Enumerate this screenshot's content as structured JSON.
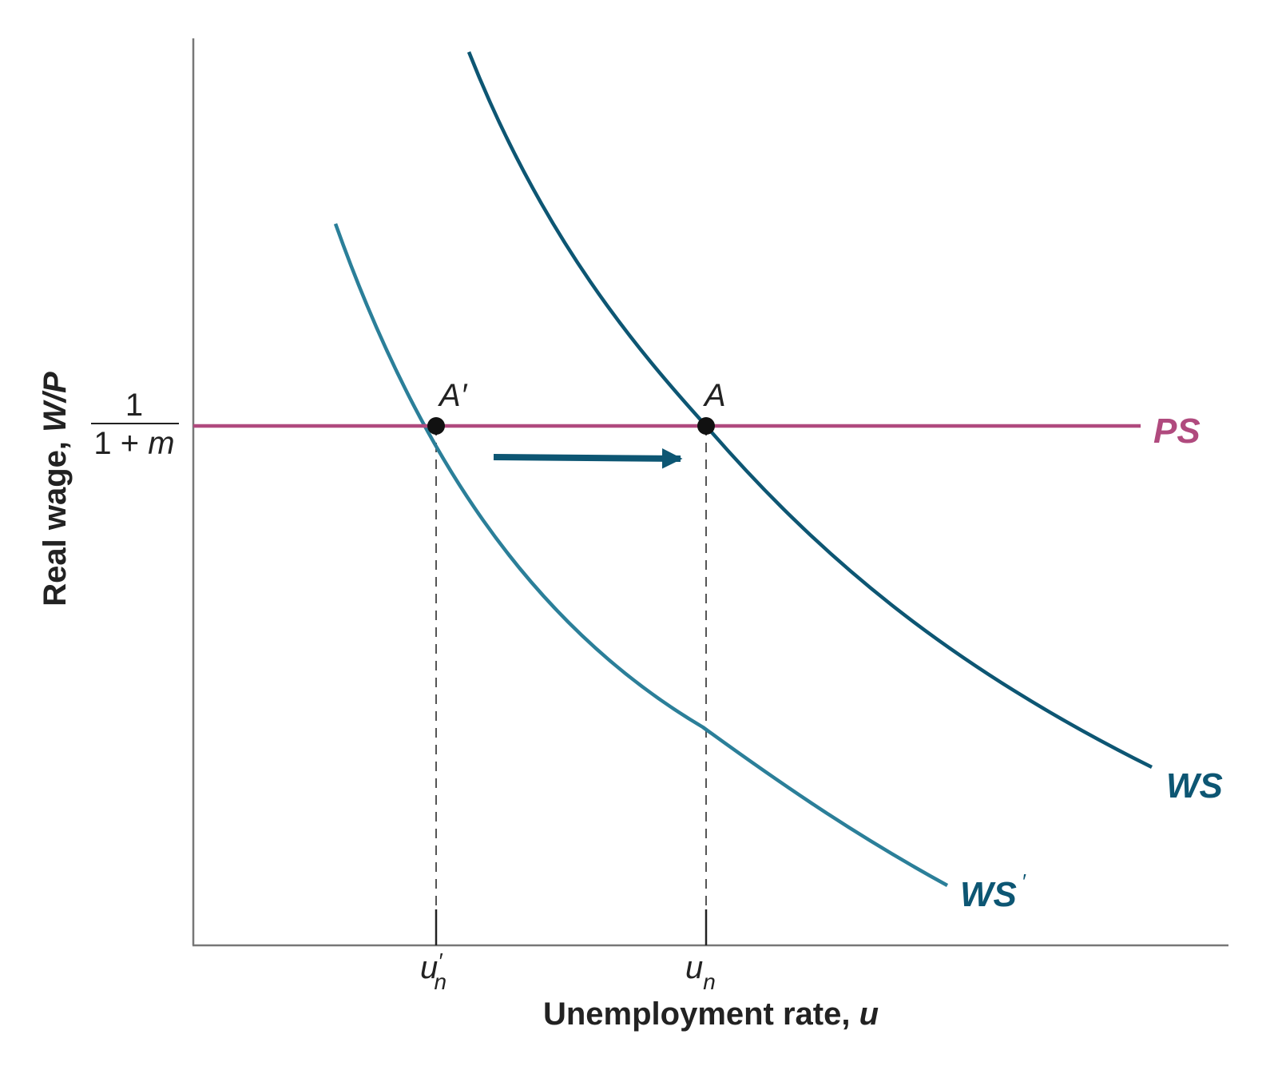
{
  "axes": {
    "y_label_prefix": "Real wage,",
    "y_label_var": "W/P",
    "x_label_prefix": "Unemployment rate,",
    "x_label_var": "u",
    "y_tick_numerator": "1",
    "y_tick_denominator_prefix": "1 + ",
    "y_tick_denominator_var": "m",
    "x_tick_left_base": "u",
    "x_tick_left_prime": "′",
    "x_tick_left_sub": "n",
    "x_tick_right_base": "u",
    "x_tick_right_sub": "n"
  },
  "curves": {
    "ps_label": "PS",
    "ws_label": "WS",
    "ws_prime_base": "WS",
    "ws_prime_mark": "′"
  },
  "points": {
    "a_prime_base": "A",
    "a_prime_mark": "′",
    "a_label": "A"
  },
  "colors": {
    "ps": "#b04a7e",
    "ws": "#0d5673",
    "ws_prime": "#2b7f99",
    "arrow": "#0d5673",
    "axis": "#777777",
    "text": "#222222"
  }
}
